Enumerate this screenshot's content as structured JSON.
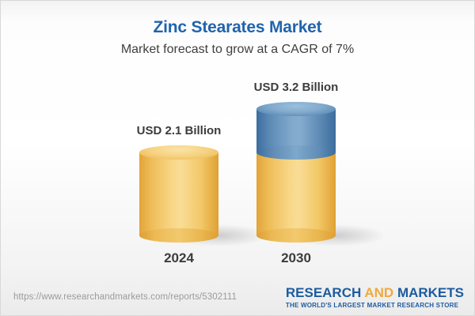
{
  "header": {
    "title": "Zinc Stearates Market",
    "subtitle": "Market forecast to grow at a CAGR of 7%"
  },
  "chart_data": {
    "type": "bar",
    "variant": "3d-stacked-cylinder",
    "title": "Zinc Stearates Market",
    "subtitle": "Market forecast to grow at a CAGR of 7%",
    "cagr": "7%",
    "unit": "USD Billion",
    "categories": [
      "2024",
      "2030"
    ],
    "values": [
      2.1,
      3.2
    ],
    "value_labels": [
      "USD 2.1 Billion",
      "USD 3.2 Billion"
    ],
    "stacking_note": "2030 cylinder shows 2024 base (gold) plus growth increment of 1.1 (blue)",
    "colors": {
      "base_segment": "#f2c867",
      "growth_segment": "#6f9cc3",
      "title": "#2064ad",
      "label_text": "#3c3c3c"
    },
    "legend": null,
    "grid": false
  },
  "footer": {
    "url": "https://www.researchandmarkets.com/reports/5302111",
    "logo": {
      "research": "RESEARCH",
      "and": "AND",
      "markets": "MARKETS",
      "tagline": "THE WORLD'S LARGEST MARKET RESEARCH STORE"
    }
  }
}
